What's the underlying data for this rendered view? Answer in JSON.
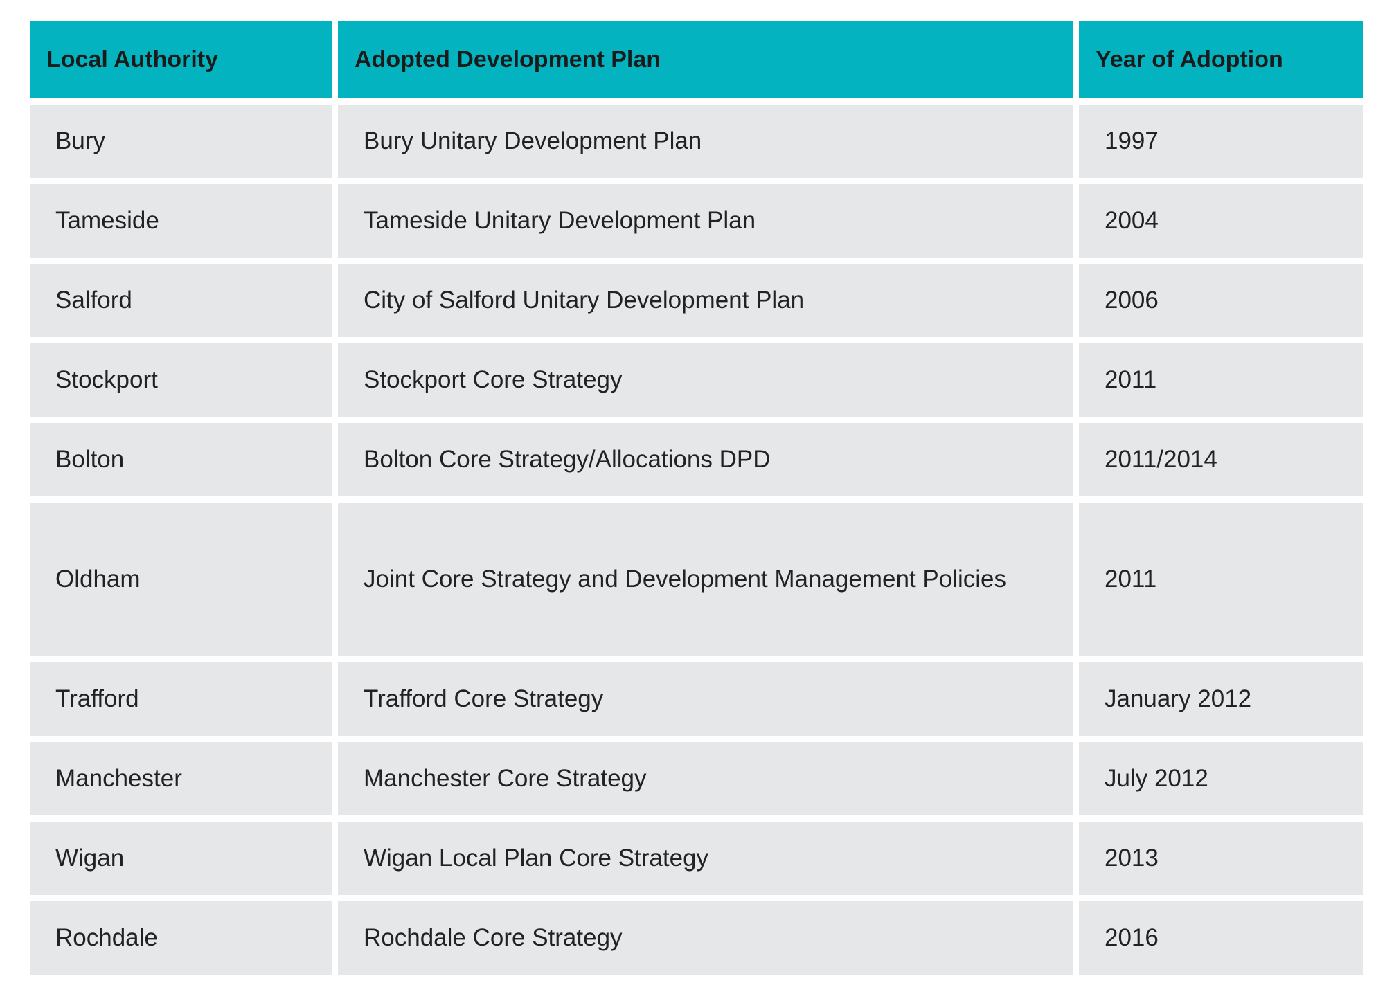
{
  "table": {
    "headers": [
      "Local Authority",
      "Adopted Development Plan",
      "Year of Adoption"
    ],
    "rows": [
      [
        "Bury",
        "Bury Unitary Development Plan",
        "1997"
      ],
      [
        "Tameside",
        "Tameside Unitary Development Plan",
        "2004"
      ],
      [
        "Salford",
        "City of Salford Unitary Development Plan",
        "2006"
      ],
      [
        "Stockport",
        "Stockport Core Strategy",
        "2011"
      ],
      [
        "Bolton",
        "Bolton Core Strategy/Allocations DPD",
        "2011/2014"
      ],
      [
        "Oldham",
        "Joint Core Strategy and Development Management Policies",
        "2011"
      ],
      [
        "Trafford",
        "Trafford Core Strategy",
        "January 2012"
      ],
      [
        "Manchester",
        "Manchester Core Strategy",
        "July 2012"
      ],
      [
        "Wigan",
        "Wigan Local Plan Core Strategy",
        "2013"
      ],
      [
        "Rochdale",
        "Rochdale Core Strategy",
        "2016"
      ]
    ]
  }
}
